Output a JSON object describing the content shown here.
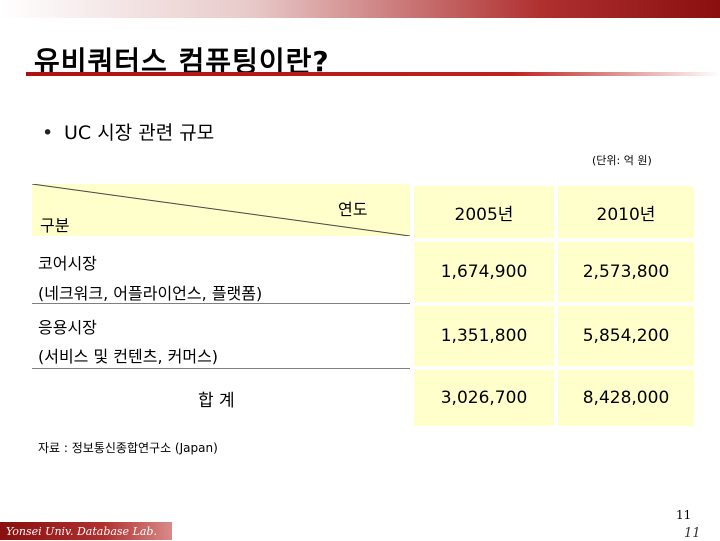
{
  "title": "유비쿼터스 컴퓨팅이란?",
  "bullet": "UC 시장 관련 규모",
  "unit_note": "(단위: 억 원)",
  "table": {
    "header_top": "연도",
    "header_bottom": "구분",
    "columns": [
      "2005년",
      "2010년"
    ],
    "rows": [
      {
        "label_line1": "코어시장",
        "label_line2": "(네크워크, 어플라이언스, 플랫폼)",
        "values": [
          "1,674,900",
          "2,573,800"
        ]
      },
      {
        "label_line1": "응용시장",
        "label_line2": "(서비스 및 컨텐츠, 커머스)",
        "values": [
          "1,351,800",
          "5,854,200"
        ]
      }
    ],
    "total": {
      "label": "합 계",
      "values": [
        "3,026,700",
        "8,428,000"
      ]
    }
  },
  "source_note": "자료 : 정보통신종합연구소 (Japan)",
  "footer": "Yonsei Univ. Database Lab.",
  "page_number": "11",
  "page_number_italic": "11"
}
